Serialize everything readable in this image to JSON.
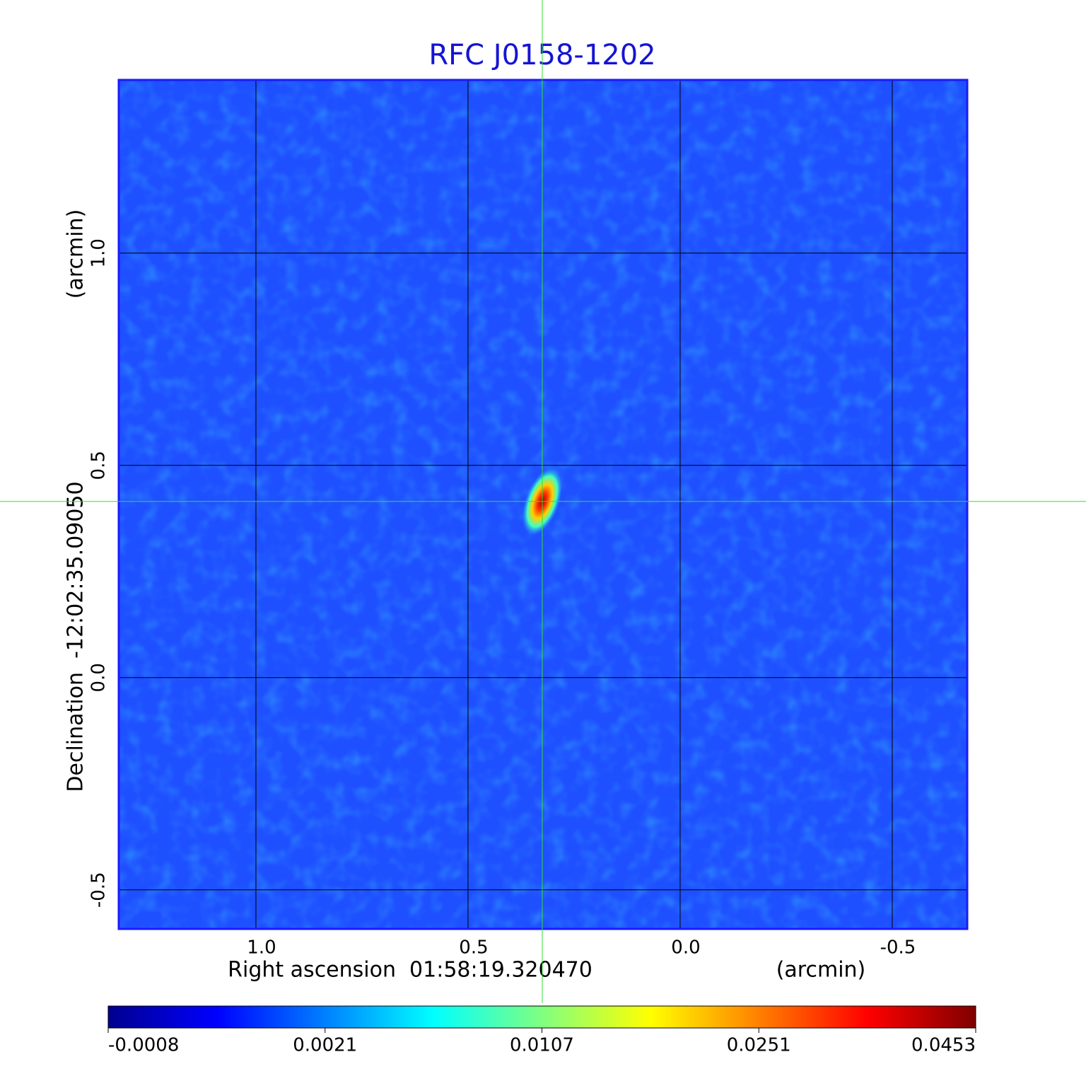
{
  "chart_data": {
    "type": "image",
    "title": "RFC J0158-1202",
    "x_label": "Right ascension  01:58:19.320470",
    "x_unit": "(arcmin)",
    "y_label": "Declination  -12:02:35.09050",
    "y_unit": "(arcmin)",
    "xlim": [
      1.3233,
      -0.6767
    ],
    "ylim": [
      -0.592,
      1.408
    ],
    "xticks": [
      {
        "value": 1.0,
        "label": "1.0"
      },
      0.5,
      {
        "value": 0.0,
        "label": "0.0"
      },
      -0.5
    ],
    "yticks": [
      {
        "value": 1.0,
        "label": "1.0"
      },
      0.5,
      {
        "value": 0.0,
        "label": "0.0"
      },
      -0.5
    ],
    "grid": true,
    "crosshair": {
      "x": 0.325,
      "y": 0.415,
      "color": "#33dd33"
    },
    "background_color": "#1e50ff",
    "colorbar": {
      "ticks": [
        -0.0008,
        0.0021,
        0.0107,
        0.0251,
        0.0453
      ],
      "colormap": [
        "#00008f",
        "#0000ff",
        "#0080ff",
        "#00ffff",
        "#80ff80",
        "#ffff00",
        "#ff8000",
        "#ff0000",
        "#800000"
      ]
    }
  }
}
